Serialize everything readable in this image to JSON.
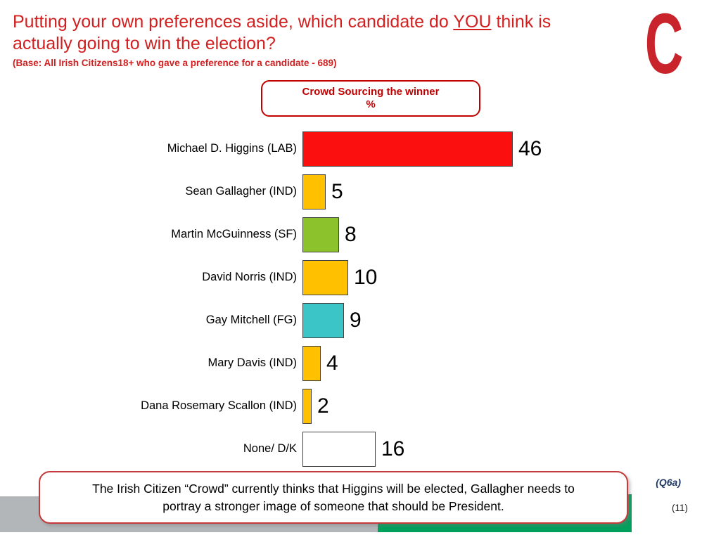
{
  "slide": {
    "title_pre": "Putting your own preferences aside, which candidate do ",
    "title_underlined": "YOU",
    "title_post": " think is",
    "title_line2": "actually going to win the election?",
    "base_note": "(Base: All Irish Citizens18+ who gave a preference for a candidate - 689)",
    "logo_letter": "C",
    "question_ref": "(Q6a)",
    "page_number": "(11)"
  },
  "chart_header": {
    "line1": "Crowd Sourcing the winner",
    "line2": "%"
  },
  "chart_data": {
    "type": "bar",
    "orientation": "horizontal",
    "title": "Crowd Sourcing the winner %",
    "xlabel": "",
    "ylabel": "",
    "unit": "%",
    "xlim": [
      0,
      50
    ],
    "grid": false,
    "legend": false,
    "categories": [
      "Michael D. Higgins (LAB)",
      "Sean Gallagher (IND)",
      "Martin McGuinness (SF)",
      "David Norris (IND)",
      "Gay Mitchell (FG)",
      "Mary Davis (IND)",
      "Dana Rosemary Scallon (IND)",
      "None/ D/K"
    ],
    "values": [
      46,
      5,
      8,
      10,
      9,
      4,
      2,
      16
    ],
    "bar_colors": [
      "#FB0F0F",
      "#FFC000",
      "#8CC32D",
      "#FFC000",
      "#3BC5C6",
      "#FFC000",
      "#FFC000",
      "#FFFFFF"
    ]
  },
  "callout": {
    "line1": "The Irish Citizen “Crowd” currently thinks that Higgins will be elected, Gallagher needs to",
    "line2": "portray a stronger image of someone that should be President."
  },
  "colors": {
    "title_red": "#D21F1F",
    "header_red": "#C00000",
    "logo_red": "#C9232B",
    "callout_border": "#C53B3B",
    "footer_gray": "#B3B6B8",
    "footer_green": "#00A05C",
    "bar_border": "#404040"
  }
}
